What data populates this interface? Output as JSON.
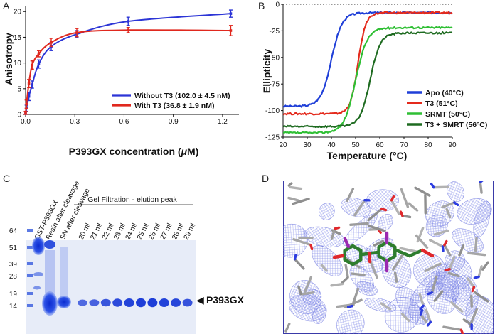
{
  "panels": {
    "A": {
      "letter": "A"
    },
    "B": {
      "letter": "B"
    },
    "C": {
      "letter": "C"
    },
    "D": {
      "letter": "D"
    }
  },
  "chart_data": [
    {
      "type": "line",
      "ylabel": "Anisotropy",
      "xlabel": "P393GX concentration (μM)",
      "xlim": [
        0,
        1.3
      ],
      "ylim": [
        0,
        21
      ],
      "xticks": [
        0.0,
        0.3,
        0.6,
        0.9,
        1.2
      ],
      "xtick_labels": [
        "0.0",
        "0.3",
        "0.6",
        "0.9",
        "1.2"
      ],
      "yticks": [
        0,
        5,
        10,
        15,
        20
      ],
      "legend_position": "bottom-right",
      "series": [
        {
          "name": "Without T3 (102.0 ± 4.5 nM)",
          "color": "#2c35d6",
          "x": [
            0.0,
            0.005,
            0.02,
            0.04,
            0.08,
            0.156,
            0.312,
            0.625,
            1.25
          ],
          "y": [
            0.3,
            1.2,
            3.5,
            5.8,
            9.8,
            13.2,
            15.6,
            18.1,
            19.6
          ],
          "err": [
            0.3,
            0.6,
            0.8,
            0.7,
            0.8,
            0.8,
            0.7,
            0.8,
            0.7
          ]
        },
        {
          "name": "With T3 (36.8 ± 1.9 nM)",
          "color": "#e0281e",
          "x": [
            0.0,
            0.005,
            0.02,
            0.04,
            0.08,
            0.156,
            0.312,
            0.625,
            1.25
          ],
          "y": [
            0.3,
            2.0,
            6.0,
            9.6,
            11.8,
            14.0,
            15.9,
            16.4,
            16.3
          ],
          "err": [
            0.3,
            0.8,
            0.8,
            0.8,
            0.6,
            0.8,
            0.8,
            0.5,
            1.0
          ]
        }
      ]
    },
    {
      "type": "line",
      "ylabel": "Ellipticity",
      "xlabel": "Temperature (°C)",
      "xlim": [
        20,
        90
      ],
      "ylim": [
        -125,
        0
      ],
      "xticks": [
        20,
        30,
        40,
        50,
        60,
        70,
        80,
        90
      ],
      "yticks": [
        0,
        -25,
        -50,
        -75,
        -100,
        -125
      ],
      "legend_position": "bottom-right",
      "series": [
        {
          "name": "Apo (40°C)",
          "color": "#1f3fd8",
          "tm": 40,
          "low": -96,
          "high": -8,
          "width": 2.2
        },
        {
          "name": "T3 (51°C)",
          "color": "#e42a1c",
          "tm": 51,
          "low": -103,
          "high": -8,
          "width": 1.6
        },
        {
          "name": "SRMT (50°C)",
          "color": "#2fbf34",
          "tm": 50,
          "low": -121,
          "high": -22,
          "width": 2.4
        },
        {
          "name": "T3 + SMRT (56°C)",
          "color": "#1e6b20",
          "tm": 56,
          "low": -115,
          "high": -27,
          "width": 2.1
        }
      ]
    }
  ],
  "gel": {
    "marker_labels": [
      "64",
      "51",
      "39",
      "28",
      "19",
      "14"
    ],
    "lane_headers": [
      "GST-P393GX",
      "Resin after cleavage",
      "SN after cleavage"
    ],
    "fraction_labels": [
      "20 ml",
      "21 ml",
      "22 ml",
      "23 ml",
      "24 ml",
      "25 ml",
      "26 ml",
      "27 ml",
      "28 ml",
      "29 ml"
    ],
    "group_label": "Gel Filtration - elution peak",
    "band_label": "P393GX",
    "band_arrow": "◀"
  }
}
